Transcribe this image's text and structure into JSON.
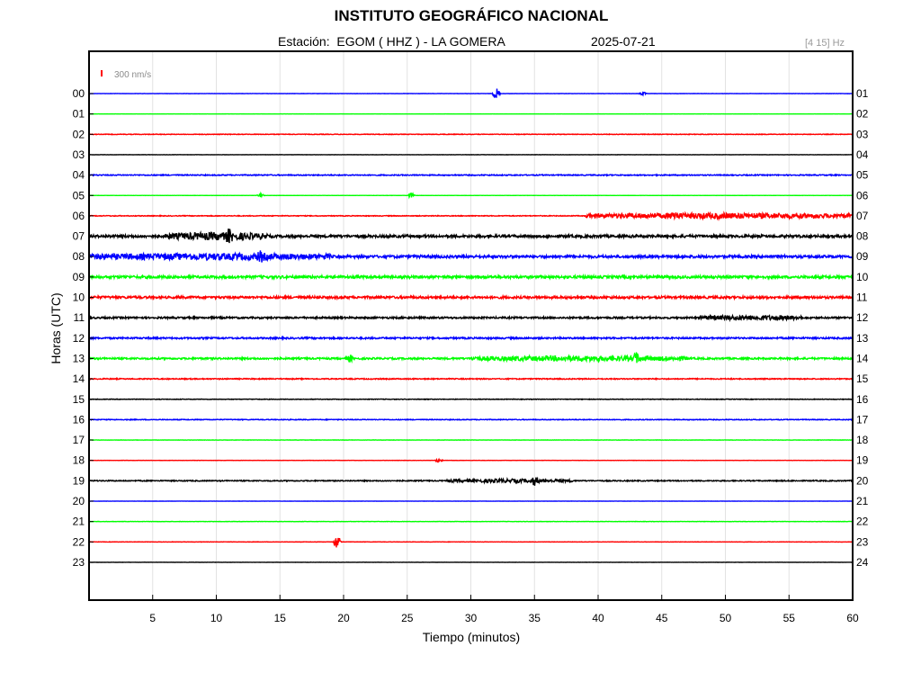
{
  "header": {
    "title": "INSTITUTO GEOGRÁFICO NACIONAL",
    "station_line": "Estación:  EGOM ( HHZ ) - LA GOMERA",
    "date": "2025-07-21",
    "frequency_band": "[4 15] Hz"
  },
  "scale_bar": {
    "label": "300 nm/s",
    "color": "#ff0000"
  },
  "chart_data": {
    "type": "line",
    "title": "INSTITUTO GEOGRÁFICO NACIONAL",
    "xlabel": "Tiempo (minutos)",
    "ylabel": "Horas (UTC)",
    "xlim": [
      0,
      60
    ],
    "x_ticks": [
      "5",
      "10",
      "15",
      "20",
      "25",
      "30",
      "35",
      "40",
      "45",
      "50",
      "55",
      "60"
    ],
    "grid": true,
    "colors": [
      "#0000ff",
      "#00ff00",
      "#ff0000",
      "#000000"
    ],
    "left_hour_labels": [
      "00",
      "01",
      "02",
      "03",
      "04",
      "05",
      "06",
      "07",
      "08",
      "09",
      "10",
      "11",
      "12",
      "13",
      "14",
      "15",
      "16",
      "17",
      "18",
      "19",
      "20",
      "21",
      "22",
      "23"
    ],
    "right_hour_labels": [
      "01",
      "02",
      "03",
      "04",
      "05",
      "06",
      "07",
      "08",
      "09",
      "10",
      "11",
      "12",
      "13",
      "14",
      "15",
      "16",
      "17",
      "18",
      "19",
      "20",
      "21",
      "22",
      "23",
      "24"
    ],
    "noise_level": [
      0.08,
      0.04,
      0.2,
      0.08,
      0.35,
      0.06,
      0.25,
      0.9,
      0.9,
      0.9,
      0.8,
      0.6,
      0.55,
      0.6,
      0.35,
      0.2,
      0.25,
      0.1,
      0.08,
      0.35,
      0.06,
      0.12,
      0.12,
      0.06
    ],
    "events": [
      {
        "trace": 0,
        "minute": 32.0,
        "amplitude": 7
      },
      {
        "trace": 0,
        "minute": 43.5,
        "amplitude": 2
      },
      {
        "trace": 5,
        "minute": 13.5,
        "amplitude": 3
      },
      {
        "trace": 5,
        "minute": 25.3,
        "amplitude": 3
      },
      {
        "trace": 6,
        "minute": 46.0,
        "amplitude": 4
      },
      {
        "trace": 7,
        "minute": 11.0,
        "amplitude": 5
      },
      {
        "trace": 8,
        "minute": 13.5,
        "amplitude": 4
      },
      {
        "trace": 13,
        "minute": 20.5,
        "amplitude": 4
      },
      {
        "trace": 13,
        "minute": 43.0,
        "amplitude": 5
      },
      {
        "trace": 19,
        "minute": 35.0,
        "amplitude": 4
      },
      {
        "trace": 22,
        "minute": 19.5,
        "amplitude": 9
      },
      {
        "trace": 18,
        "minute": 27.5,
        "amplitude": 3
      }
    ],
    "noisy_spans": [
      {
        "trace": 6,
        "from": 39,
        "to": 60,
        "amplitude": 3
      },
      {
        "trace": 7,
        "from": 6,
        "to": 14,
        "amplitude": 3
      },
      {
        "trace": 8,
        "from": 0,
        "to": 19,
        "amplitude": 2.5
      },
      {
        "trace": 11,
        "from": 48,
        "to": 56,
        "amplitude": 2
      },
      {
        "trace": 13,
        "from": 30,
        "to": 47,
        "amplitude": 2.2
      },
      {
        "trace": 19,
        "from": 28,
        "to": 38,
        "amplitude": 1.5
      }
    ]
  }
}
